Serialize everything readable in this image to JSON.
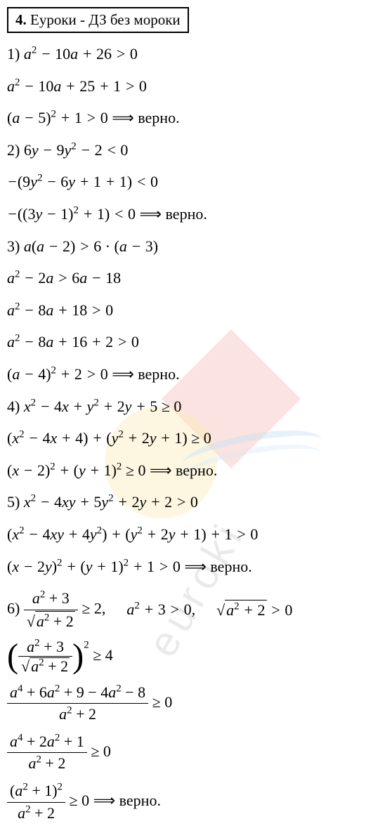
{
  "header": {
    "number": "4.",
    "title": "Еуроки - ДЗ без мороки"
  },
  "watermark_text": "euroki",
  "lines": {
    "l1": "1) a² − 10a + 26 > 0",
    "l2": "a² − 10a + 25 + 1 > 0",
    "l3": "(a − 5)² + 1 > 0 ⟹ верно.",
    "l4": "2) 6y − 9y² − 2 < 0",
    "l5": "−(9y² − 6y + 1 + 1) < 0",
    "l6": "−((3y − 1)² + 1) < 0 ⟹ верно.",
    "l7": "3) a(a − 2) > 6 · (a − 3)",
    "l8": "a² − 2a > 6a − 18",
    "l9": "a² − 8a + 18 > 0",
    "l10": "a² − 8a + 16 + 2 > 0",
    "l11": "(a − 4)² + 2 > 0 ⟹ верно.",
    "l12": "4) x² − 4x + y² + 2y + 5 ≥ 0",
    "l13": "(x² − 4x + 4) + (y² + 2y + 1) ≥ 0",
    "l14": "(x − 2)² + (y + 1)² ≥ 0 ⟹ верно.",
    "l15": "5) x² − 4xy + 5y² + 2y + 2 > 0",
    "l16": "(x² − 4xy + 4y²) + (y² + 2y + 1) + 1 > 0",
    "l17": "(x − 2y)² + (y + 1)² + 1 > 0 ⟹ верно.",
    "p6_prefix": "6)",
    "p6_frac_num": "a² + 3",
    "p6_frac_den_sqrt": "a² + 2",
    "p6_cmp1": "≥ 2,",
    "p6_mid": "a² + 3 > 0,",
    "p6_sqrt": "a² + 2",
    "p6_end": "> 0",
    "p6b_frac_num": "a² + 3",
    "p6b_frac_den_sqrt": "a² + 2",
    "p6b_pow": "2",
    "p6b_cmp": "≥ 4",
    "p6c_num": "a⁴ + 6a² + 9 − 4a² − 8",
    "p6c_den": "a² + 2",
    "p6c_cmp": "≥ 0",
    "p6d_num": "a⁴ + 2a² + 1",
    "p6d_den": "a² + 2",
    "p6d_cmp": "≥ 0",
    "p6e_num": "(a² + 1)²",
    "p6e_den": "a² + 2",
    "p6e_cmp": "≥ 0 ⟹ верно."
  },
  "style": {
    "font_size_pt": 22,
    "text_color": "#000000",
    "background_color": "#ffffff",
    "border_color": "#000000",
    "watermark_colors": {
      "red": "#e74c3c",
      "yellow": "#f1c40f",
      "blue": "#3498db",
      "text": "#bbbbbb"
    }
  }
}
